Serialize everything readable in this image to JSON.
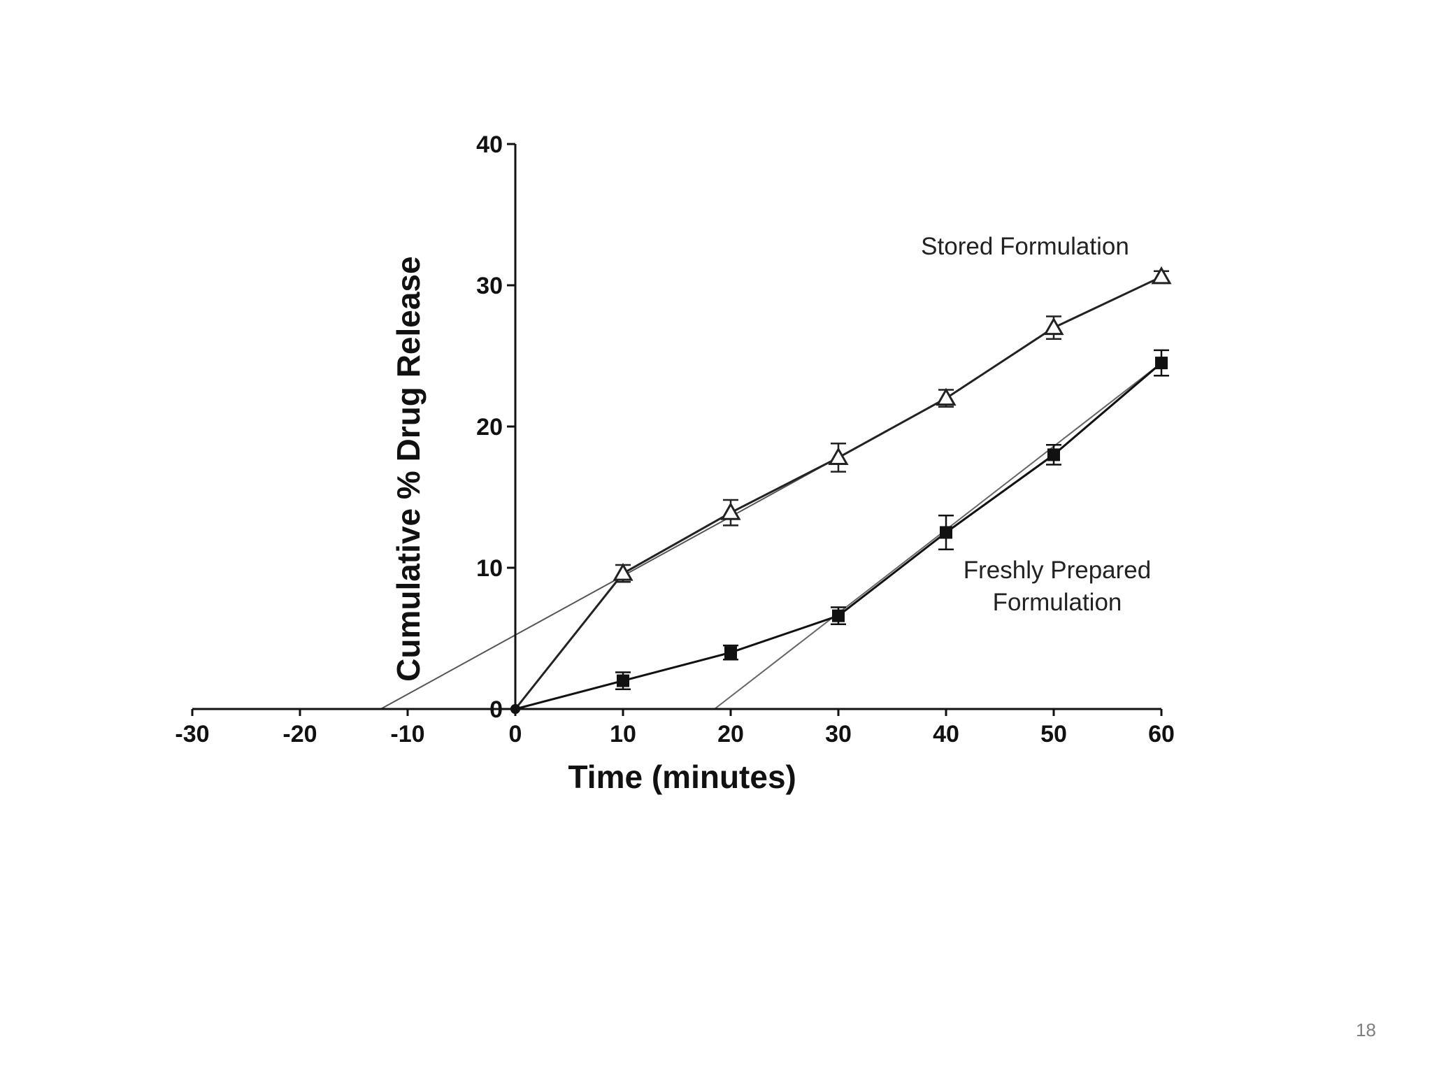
{
  "slide": {
    "page_number": "18"
  },
  "chart_data": {
    "type": "line",
    "xlabel": "Time (minutes)",
    "ylabel": "Cumulative % Drug Release",
    "xlim": [
      -30,
      60
    ],
    "ylim": [
      0,
      40
    ],
    "xticks": [
      -30,
      -20,
      -10,
      0,
      10,
      20,
      30,
      40,
      50,
      60
    ],
    "xtick_labels": [
      "-30",
      "-20",
      "-10",
      "0",
      "10",
      "20",
      "30",
      "40",
      "50",
      "60"
    ],
    "yticks": [
      0,
      10,
      20,
      30,
      40
    ],
    "ytick_labels": [
      "0",
      "10",
      "20",
      "30",
      "40"
    ],
    "grid": false,
    "annotations": [
      {
        "id": "stored",
        "text": "Stored Formulation"
      },
      {
        "id": "fresh_line1",
        "text": "Freshly Prepared"
      },
      {
        "id": "fresh_line2",
        "text": "Formulation"
      }
    ],
    "series": [
      {
        "marker": "open-triangle",
        "color": "#222222",
        "x": [
          0,
          10,
          20,
          30,
          40,
          50,
          60
        ],
        "y": [
          0,
          9.6,
          13.9,
          17.8,
          22.0,
          27.0,
          30.6
        ],
        "error": [
          0,
          0.6,
          0.9,
          1.0,
          0.6,
          0.8,
          0.4
        ]
      },
      {
        "marker": "filled-square",
        "color": "#111111",
        "x": [
          0,
          10,
          20,
          30,
          40,
          50,
          60
        ],
        "y": [
          0,
          2.0,
          4.0,
          6.6,
          12.5,
          18.0,
          24.5
        ],
        "error": [
          0,
          0.6,
          0.5,
          0.6,
          1.2,
          0.7,
          0.9
        ]
      }
    ],
    "extrapolation_lines": [
      {
        "color": "#555555",
        "x": [
          -12.5,
          40
        ],
        "y": [
          0,
          22.0
        ]
      },
      {
        "color": "#666666",
        "x": [
          18.5,
          60
        ],
        "y": [
          0,
          24.5
        ]
      }
    ]
  }
}
